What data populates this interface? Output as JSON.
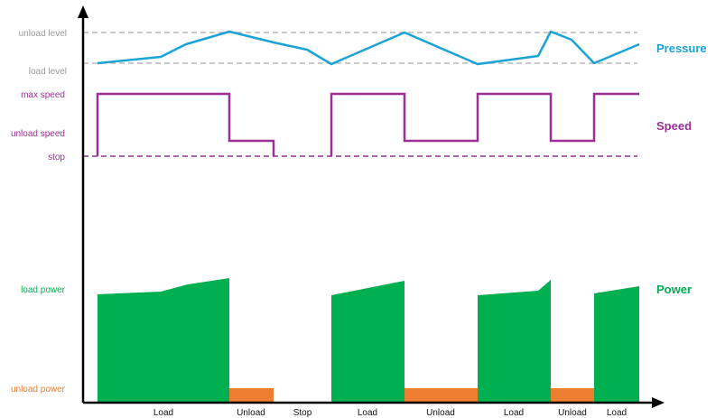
{
  "colors": {
    "pressure": "#1aa3d4",
    "speed": "#9b2f96",
    "load_power": "#00b050",
    "unload_power": "#ed7d31",
    "pressure_label": "#9a9a9a",
    "guide": "#b8b8b8",
    "axis": "#000000"
  },
  "y_labels": {
    "unload_level": "unload level",
    "load_level": "load level",
    "max_speed": "max speed",
    "unload_speed": "unload speed",
    "stop": "stop",
    "load_power": "load power",
    "unload_power": "unload power"
  },
  "series_labels": {
    "pressure": "Pressure",
    "speed": "Speed",
    "power": "Power"
  },
  "phases": [
    {
      "label": "Load",
      "mode": "load"
    },
    {
      "label": "Unload",
      "mode": "unload"
    },
    {
      "label": "Stop",
      "mode": "stop"
    },
    {
      "label": "Load",
      "mode": "load"
    },
    {
      "label": "Unload",
      "mode": "unload"
    },
    {
      "label": "Load",
      "mode": "load"
    },
    {
      "label": "Unload",
      "mode": "unload"
    },
    {
      "label": "Load",
      "mode": "load"
    }
  ]
}
